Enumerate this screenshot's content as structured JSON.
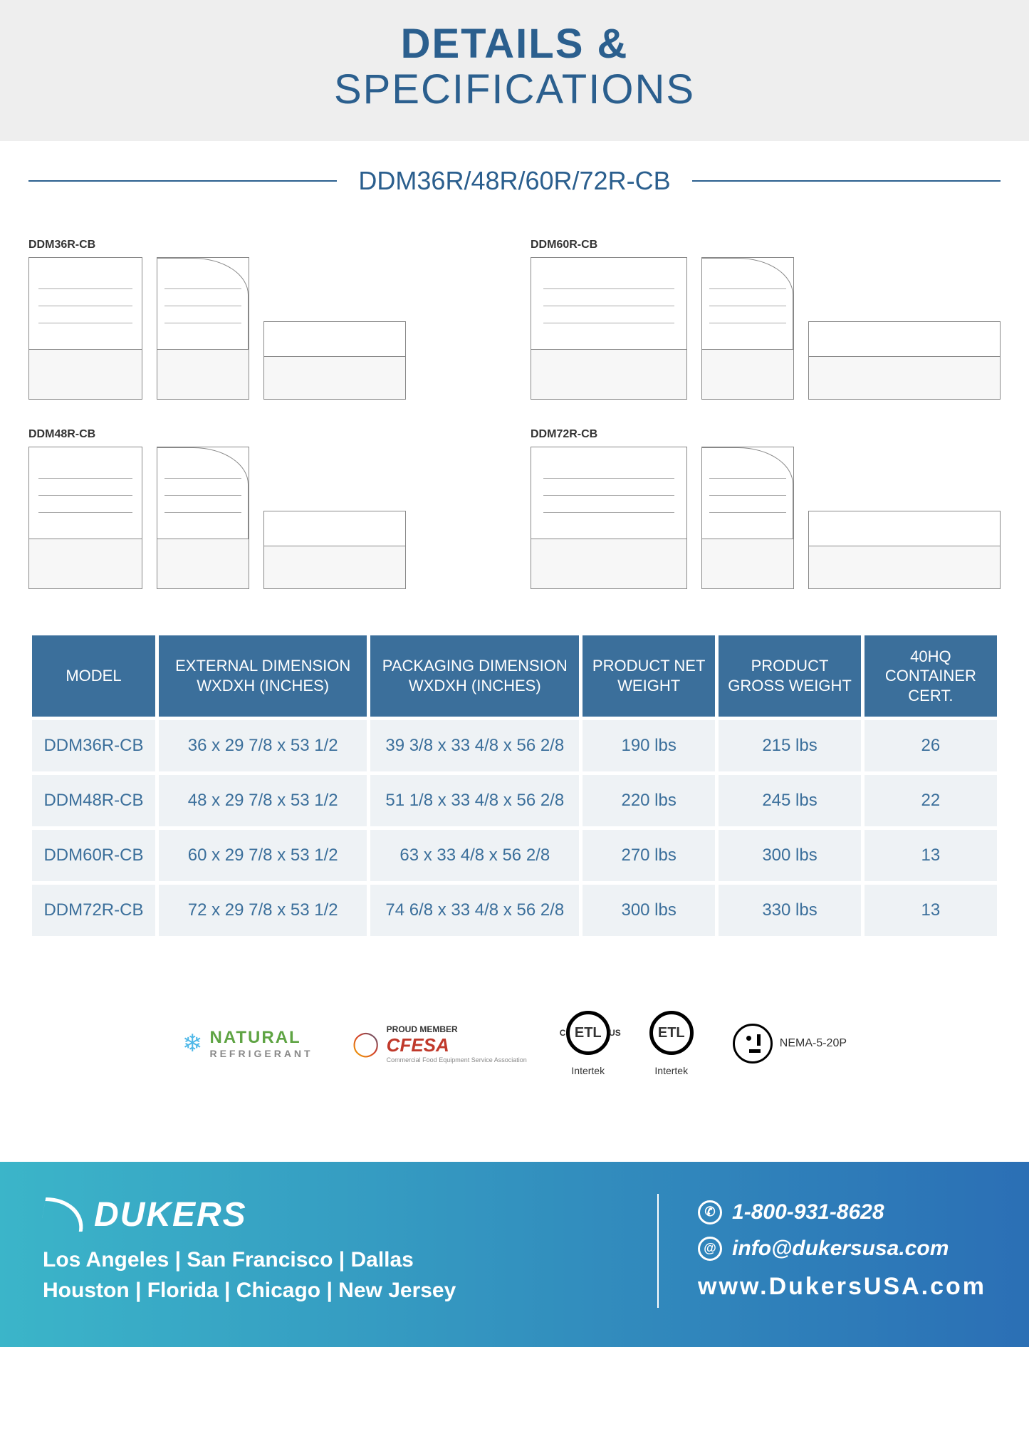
{
  "colors": {
    "brand_blue": "#2b5f8e",
    "table_header_bg": "#3b6f9b",
    "table_cell_bg": "#eef2f5",
    "header_band_bg": "#eeeeee",
    "footer_grad_start": "#3bb5c9",
    "footer_grad_end": "#2b6fb5"
  },
  "header": {
    "line1": "DETAILS &",
    "line2": "SPECIFICATIONS"
  },
  "subheader": "DDM36R/48R/60R/72R-CB",
  "drawings": [
    {
      "label": "DDM36R-CB",
      "size": "small"
    },
    {
      "label": "DDM60R-CB",
      "size": "big"
    },
    {
      "label": "DDM48R-CB",
      "size": "small"
    },
    {
      "label": "DDM72R-CB",
      "size": "big"
    }
  ],
  "table": {
    "columns": [
      "MODEL",
      "EXTERNAL DIMENSION\nWXDXH (INCHES)",
      "PACKAGING DIMENSION\nWXDXH (INCHES)",
      "PRODUCT NET\nWEIGHT",
      "PRODUCT\nGROSS WEIGHT",
      "40HQ\nCONTAINER CERT."
    ],
    "column_widths_pct": [
      13,
      22,
      22,
      14,
      15,
      14
    ],
    "rows": [
      [
        "DDM36R-CB",
        "36 x 29 7/8 x 53 1/2",
        "39 3/8 x 33 4/8 x 56 2/8",
        "190 lbs",
        "215 lbs",
        "26"
      ],
      [
        "DDM48R-CB",
        "48 x 29 7/8 x 53 1/2",
        "51 1/8 x 33 4/8 x 56 2/8",
        "220 lbs",
        "245 lbs",
        "22"
      ],
      [
        "DDM60R-CB",
        "60 x 29 7/8 x 53 1/2",
        "63 x 33 4/8 x 56 2/8",
        "270 lbs",
        "300 lbs",
        "13"
      ],
      [
        "DDM72R-CB",
        "72 x 29 7/8 x 53 1/2",
        "74 6/8 x 33 4/8 x 56 2/8",
        "300 lbs",
        "330 lbs",
        "13"
      ]
    ]
  },
  "certs": {
    "natural": {
      "line1": "NATURAL",
      "line2": "REFRIGERANT"
    },
    "cfesa": {
      "line1": "PROUD MEMBER",
      "line2": "CFESA",
      "line3": "Commercial Food Equipment Service Association"
    },
    "etl1": {
      "badge": "ETL",
      "caption": "Intertek"
    },
    "etl2": {
      "badge": "ETL",
      "caption": "Intertek"
    },
    "nema": {
      "label": "NEMA-5-20P"
    }
  },
  "footer": {
    "brand": "DUKERS",
    "locations_line1": "Los Angeles | San Francisco | Dallas",
    "locations_line2": "Houston | Florida | Chicago | New Jersey",
    "phone": "1-800-931-8628",
    "email": "info@dukersusa.com",
    "website": "www.DukersUSA.com"
  }
}
